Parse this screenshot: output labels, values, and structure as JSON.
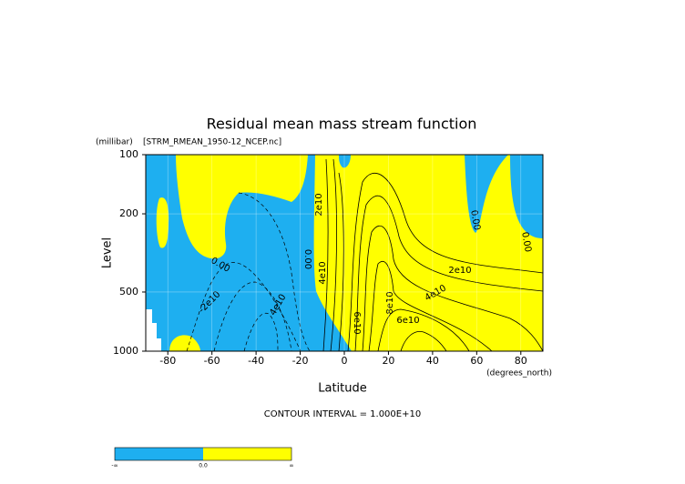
{
  "chart_data": {
    "type": "contour",
    "title": "Residual mean mass stream function",
    "subtitle": "[STRM_RMEAN_1950-12_NCEP.nc]",
    "y_units": "(millibar)",
    "y_label": "Level",
    "x_label": "Latitude",
    "x_units": "(degrees_north)",
    "note": "CONTOUR INTERVAL = 1.000E+10",
    "xlim": [
      -90,
      90
    ],
    "xticks": [
      -80,
      -60,
      -40,
      -20,
      0,
      20,
      40,
      60,
      80
    ],
    "ylim": [
      1000,
      100
    ],
    "yticks": [
      100,
      200,
      500,
      1000
    ],
    "log_y": true,
    "grid": true,
    "colors": {
      "negative": "#1eaff0",
      "positive": "#ffff00"
    },
    "contour_labels": [
      "0.00",
      "-2e10",
      "4e10",
      "2e10",
      "0.00",
      "4e10",
      "2e10",
      "4e10",
      "8e10",
      "6e10",
      "6e10",
      "0.00",
      "0.00"
    ],
    "colorbar": {
      "labels": [
        "-∞",
        "0.0",
        "∞"
      ]
    }
  }
}
